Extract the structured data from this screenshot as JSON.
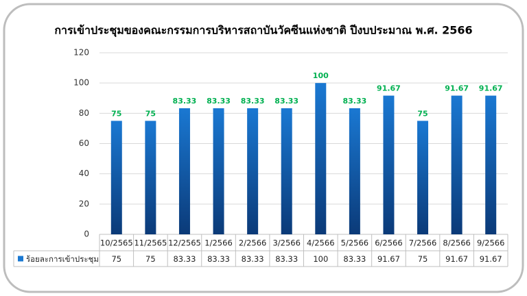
{
  "chart_data": {
    "type": "bar",
    "title": "การเข้าประชุมของคณะกรรมการบริหารสถาบันวัคซีนแห่งชาติ ปีงบประมาณ พ.ศ. 2566",
    "categories": [
      "10/2565",
      "11/2565",
      "12/2565",
      "1/2566",
      "2/2566",
      "3/2566",
      "4/2566",
      "5/2566",
      "6/2566",
      "7/2566",
      "8/2566",
      "9/2566"
    ],
    "series": [
      {
        "name": "ร้อยละการเข้าประชุม",
        "color": "#1a78d2",
        "values": [
          75,
          75,
          83.33,
          83.33,
          83.33,
          83.33,
          100,
          83.33,
          91.67,
          75,
          91.67,
          91.67
        ]
      }
    ],
    "value_label_color": "#00b050",
    "ylim": [
      0,
      120
    ],
    "yticks": [
      0,
      20,
      40,
      60,
      80,
      100,
      120
    ],
    "grid": true,
    "data_table": true
  }
}
